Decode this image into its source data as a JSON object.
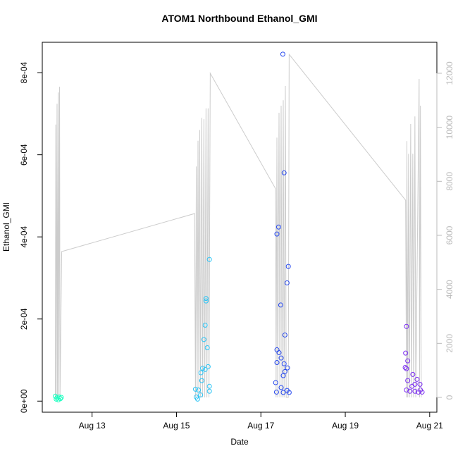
{
  "chart_data": {
    "type": "scatter",
    "title": "ATOM1 Northbound Ethanol_GMI",
    "xlabel": "Date",
    "ylabel": "Ethanol_GMI",
    "xlim": [
      11.82,
      21.17
    ],
    "xticks": [
      {
        "value": 13,
        "label": "Aug 13"
      },
      {
        "value": 15,
        "label": "Aug 15"
      },
      {
        "value": 17,
        "label": "Aug 17"
      },
      {
        "value": 19,
        "label": "Aug 19"
      },
      {
        "value": 21,
        "label": "Aug 21"
      }
    ],
    "ylim": [
      -2.7e-05,
      0.000874
    ],
    "yticks": [
      {
        "value": 0,
        "label": "0e+00"
      },
      {
        "value": 0.0002,
        "label": "2e-04"
      },
      {
        "value": 0.0004,
        "label": "4e-04"
      },
      {
        "value": 0.0006,
        "label": "6e-04"
      },
      {
        "value": 0.0008,
        "label": "8e-04"
      }
    ],
    "y2lim": [
      -548,
      13147
    ],
    "y2ticks": [
      0,
      2000,
      4000,
      6000,
      8000,
      10000,
      12000
    ],
    "y2color": "#bbbbbb",
    "series": [
      {
        "type": "line",
        "axis": "y2",
        "color": "#cccccc",
        "x": [
          12.13,
          12.14,
          12.15,
          12.17,
          12.18,
          12.2,
          12.21,
          12.23,
          12.24,
          12.28,
          15.43,
          15.45,
          15.47,
          15.49,
          15.51,
          15.53,
          15.55,
          15.57,
          15.6,
          15.62,
          15.65,
          15.67,
          15.7,
          15.72,
          15.75,
          15.77,
          15.8,
          17.35,
          17.36,
          17.38,
          17.4,
          17.43,
          17.45,
          17.48,
          17.5,
          17.53,
          17.55,
          17.58,
          17.6,
          17.65,
          17.67,
          20.43,
          20.45,
          20.46,
          20.48,
          20.5,
          20.52,
          20.55,
          20.57,
          20.6,
          20.62,
          20.65,
          20.67,
          20.75,
          20.76,
          20.78,
          20.8
        ],
        "values": [
          0,
          10100,
          0,
          10870,
          0,
          11290,
          0,
          11500,
          0,
          5400,
          6806,
          0,
          8550,
          0,
          9500,
          0,
          9900,
          0,
          10350,
          0,
          10300,
          0,
          10700,
          0,
          10700,
          0,
          12000,
          7720,
          0,
          9620,
          0,
          10540,
          0,
          10800,
          0,
          11000,
          0,
          11530,
          0,
          0,
          12700,
          7300,
          0,
          9490,
          0,
          9020,
          0,
          10120,
          0,
          9020,
          0,
          10400,
          0,
          11790,
          0,
          10800,
          0
        ]
      },
      {
        "color": "#1affc0",
        "x": [
          12.13,
          12.15,
          12.17,
          12.2,
          12.22,
          12.25,
          12.27
        ],
        "values": [
          1.2e-05,
          5e-06,
          8e-06,
          3e-06,
          1e-05,
          6e-06,
          9e-06
        ]
      },
      {
        "color": "#2cc4f5",
        "x": [
          15.78,
          15.7,
          15.7,
          15.68,
          15.65,
          15.73,
          15.75,
          15.62,
          15.68,
          15.58,
          15.6,
          15.78,
          15.52,
          15.78,
          15.57,
          15.45,
          15.47,
          15.5
        ],
        "values": [
          0.000345,
          0.00025,
          0.000244,
          0.000185,
          0.00015,
          0.00013,
          8.4e-05,
          8e-05,
          7.7e-05,
          6.9e-05,
          5e-05,
          3.6e-05,
          2.7e-05,
          2.4e-05,
          1.5e-05,
          2.9e-05,
          1e-05,
          5e-06
        ]
      },
      {
        "color": "#2649f0",
        "x": [
          17.52,
          17.55,
          17.38,
          17.42,
          17.65,
          17.62,
          17.47,
          17.57,
          17.38,
          17.43,
          17.48,
          17.38,
          17.55,
          17.63,
          17.57,
          17.53,
          17.35,
          17.48,
          17.62,
          17.37,
          17.53,
          17.67
        ],
        "values": [
          0.000845,
          0.000556,
          0.000407,
          0.000424,
          0.000328,
          0.000288,
          0.000234,
          0.000161,
          0.000125,
          0.000118,
          0.000105,
          9.4e-05,
          9.1e-05,
          8.1e-05,
          7.2e-05,
          6.2e-05,
          4.5e-05,
          3.3e-05,
          2.6e-05,
          2.2e-05,
          2.1e-05,
          2.1e-05
        ]
      },
      {
        "color": "#7b2cf2",
        "x": [
          20.45,
          20.43,
          20.48,
          20.45,
          20.42,
          20.48,
          20.65,
          20.6,
          20.7,
          20.77,
          20.58,
          20.45,
          20.53,
          20.73,
          20.82,
          20.65,
          20.78
        ],
        "values": [
          0.000182,
          0.000117,
          9.8e-05,
          7.9e-05,
          8.2e-05,
          5e-05,
          4.1e-05,
          6.5e-05,
          5.3e-05,
          4.1e-05,
          3.6e-05,
          2.7e-05,
          2.4e-05,
          2.2e-05,
          2.2e-05,
          2.4e-05,
          2.7e-05
        ]
      }
    ]
  }
}
